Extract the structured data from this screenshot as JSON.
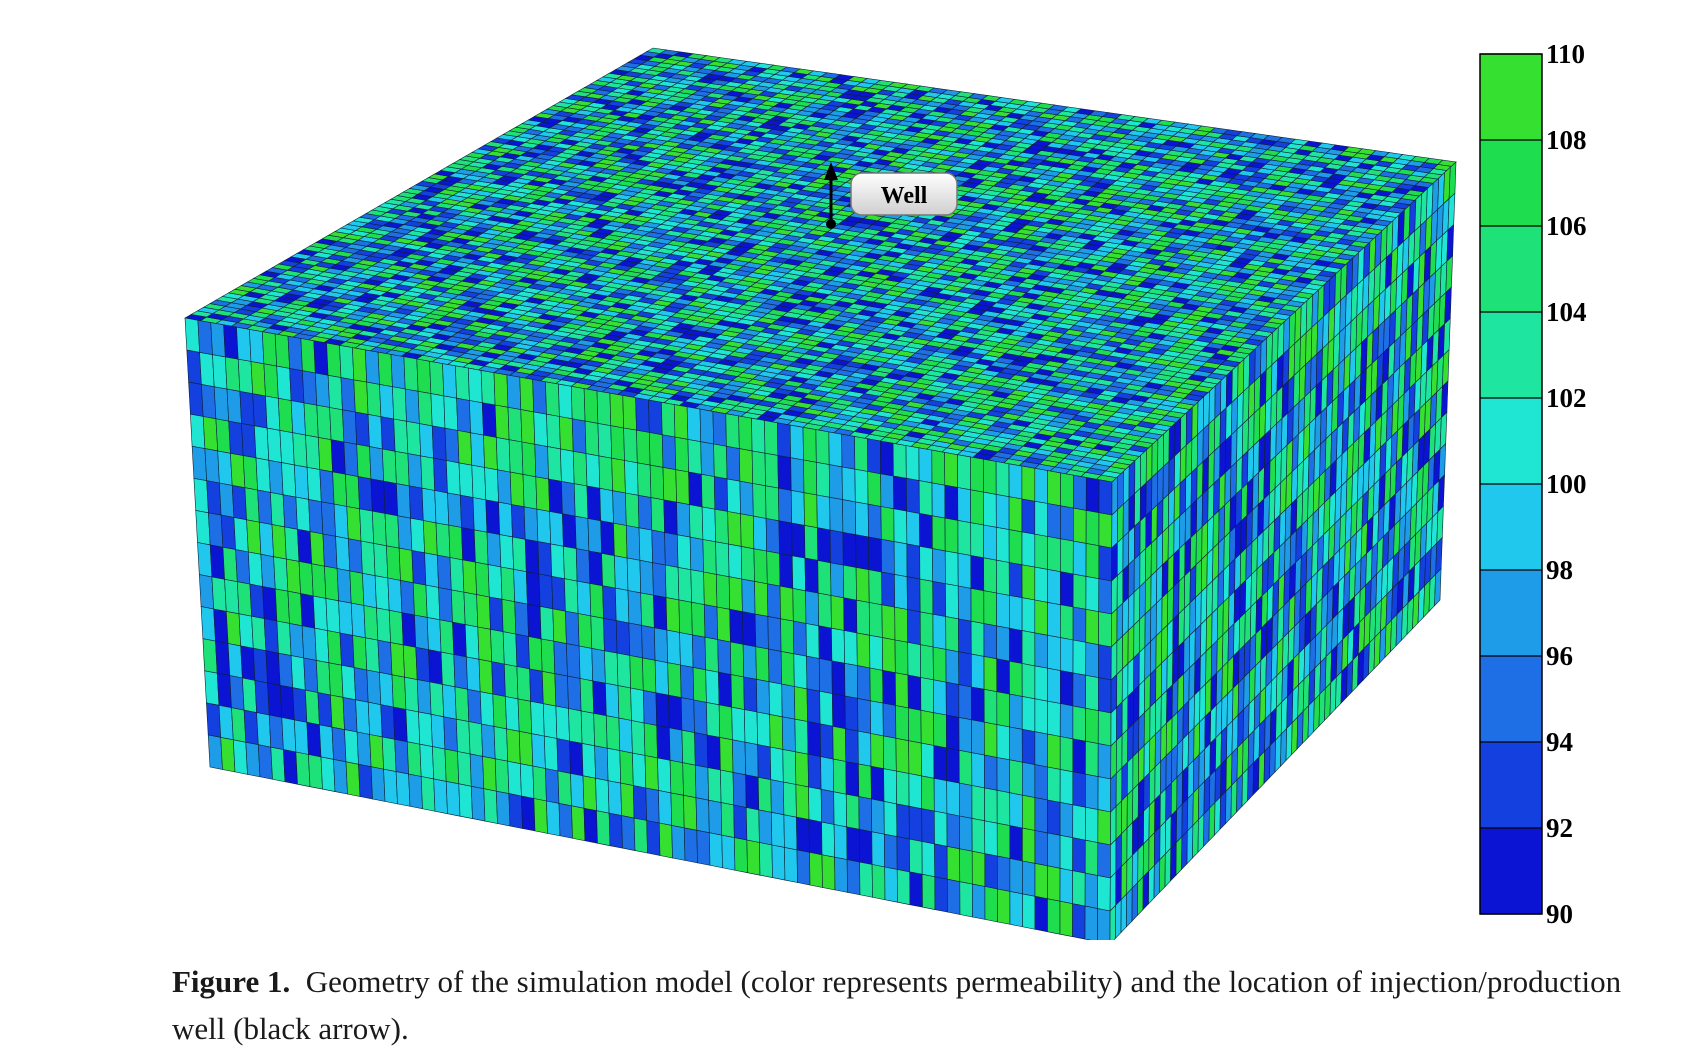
{
  "figure": {
    "well_label": "Well",
    "colorbar": {
      "ticks": [
        "110",
        "108",
        "106",
        "104",
        "102",
        "100",
        "98",
        "96",
        "94",
        "92",
        "90"
      ],
      "min": 90,
      "max": 110,
      "bands": [
        "#0a14d2",
        "#1440e0",
        "#1e6ee6",
        "#1e9ce8",
        "#20c8ee",
        "#1ee6d2",
        "#1ee6a0",
        "#1ee278",
        "#1ede50",
        "#36e030"
      ]
    }
  },
  "caption": {
    "label": "Figure 1.",
    "text": "Geometry of the simulation model (color represents permeability) and the location of injection/production well (black arrow)."
  }
}
